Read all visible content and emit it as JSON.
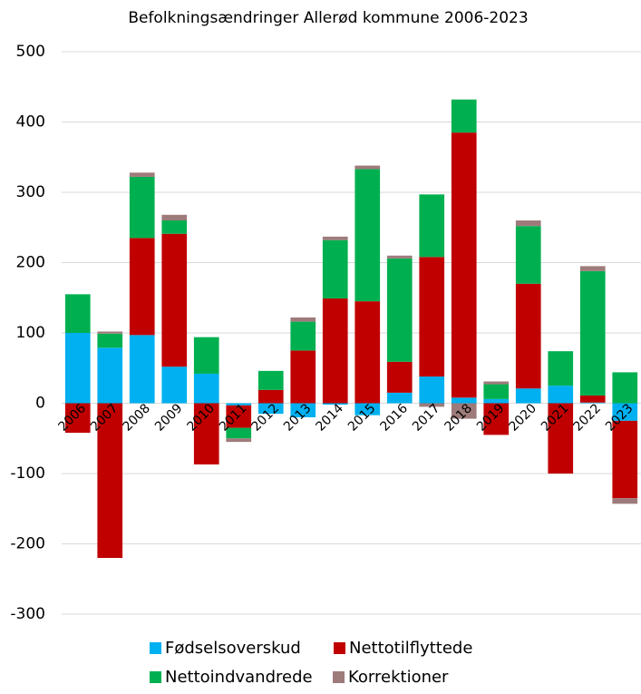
{
  "chart_data": {
    "type": "stacked_bar",
    "title": "Befolkningsændringer Allerød kommune 2006-2023",
    "categories": [
      "2006",
      "2007",
      "2008",
      "2009",
      "2010",
      "2011",
      "2012",
      "2013",
      "2014",
      "2015",
      "2016",
      "2017",
      "2018",
      "2019",
      "2020",
      "2021",
      "2022",
      "2023"
    ],
    "series": [
      {
        "name": "Fødselsoverskud",
        "color": "#00b0f0",
        "values": [
          100,
          79,
          97,
          52,
          42,
          -3,
          -15,
          -20,
          -2,
          -17,
          15,
          38,
          8,
          6,
          21,
          25,
          1,
          -25
        ]
      },
      {
        "name": "Nettotilflyttede",
        "color": "#c00000",
        "values": [
          -42,
          -220,
          138,
          189,
          -87,
          -32,
          19,
          75,
          149,
          145,
          44,
          170,
          377,
          -45,
          149,
          -100,
          10,
          -110
        ]
      },
      {
        "name": "Nettoindvandrede",
        "color": "#00b050",
        "values": [
          55,
          20,
          87,
          19,
          52,
          -15,
          27,
          41,
          83,
          188,
          147,
          89,
          47,
          21,
          82,
          49,
          177,
          44
        ]
      },
      {
        "name": "Korrektioner",
        "color": "#9e7b7b",
        "values": [
          0,
          3,
          6,
          8,
          0,
          -5,
          0,
          6,
          5,
          5,
          4,
          -5,
          -22,
          4,
          8,
          0,
          7,
          -8
        ]
      }
    ],
    "ylim": [
      -300,
      500
    ],
    "yticks": [
      -300,
      -200,
      -100,
      0,
      100,
      200,
      300,
      400,
      500
    ],
    "grid": true
  }
}
